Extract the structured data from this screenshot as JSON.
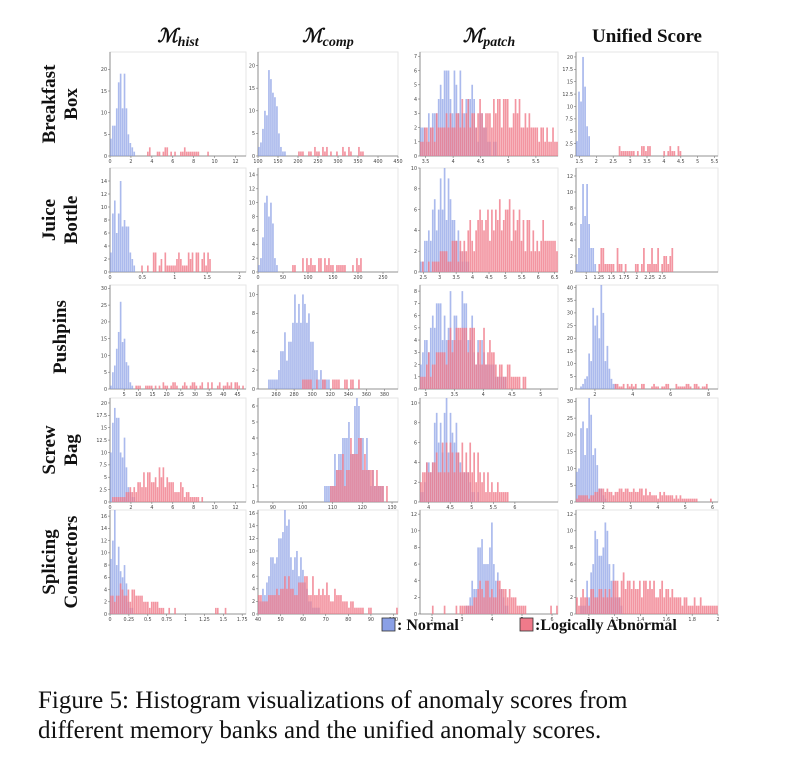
{
  "figure": {
    "columns": [
      {
        "symbol": "ℳ",
        "sub": "hist"
      },
      {
        "symbol": "ℳ",
        "sub": "comp"
      },
      {
        "symbol": "ℳ",
        "sub": "patch"
      },
      {
        "symbol": "",
        "sub": "",
        "label": "Unified Score"
      }
    ],
    "rows": [
      {
        "lines": [
          "Breakfast",
          "Box"
        ]
      },
      {
        "lines": [
          "Juice",
          "Bottle"
        ]
      },
      {
        "lines": [
          "Pushpins"
        ]
      },
      {
        "lines": [
          "Screw",
          "Bag"
        ]
      },
      {
        "lines": [
          "Splicing",
          "Connectors"
        ]
      }
    ],
    "legend": [
      {
        "label": ": Normal",
        "color": "#8aa0e6"
      },
      {
        "label": ":Logically Abnormal",
        "color": "#f07a8a"
      }
    ],
    "caption": {
      "line1": "Figure 5: Histogram visualizations of anomaly scores from",
      "line2": "different memory banks and the unified anomaly scores."
    }
  },
  "chart_data": {
    "type": "bar",
    "series_names": [
      "Normal",
      "Logically Abnormal"
    ],
    "colors": {
      "normal": "#8aa0e6",
      "abnormal": "#f07a8a"
    },
    "panels": [
      {
        "row": "Breakfast Box",
        "col": "M_hist",
        "xlim": [
          0,
          13
        ],
        "ylim": [
          0,
          24
        ],
        "xticks": [
          0,
          2,
          4,
          6,
          8,
          10,
          12
        ],
        "yticks": [
          0,
          5,
          10,
          15,
          20
        ],
        "normal": {
          "center": 1.0,
          "spread": 0.5,
          "peak": 23,
          "tail": 0
        },
        "abnormal": {
          "center": 6.5,
          "spread": 6,
          "peak": 2,
          "tail": 1,
          "uniform": true
        }
      },
      {
        "row": "Breakfast Box",
        "col": "M_comp",
        "xlim": [
          100,
          450
        ],
        "ylim": [
          0,
          23
        ],
        "xticks": [
          100,
          150,
          200,
          250,
          300,
          350,
          400,
          450
        ],
        "yticks": [
          0,
          5,
          10,
          15,
          20
        ],
        "normal": {
          "center": 130,
          "spread": 14,
          "peak": 22,
          "tail": 0
        },
        "abnormal": {
          "center": 280,
          "spread": 170,
          "peak": 2,
          "tail": 1,
          "uniform": true
        }
      },
      {
        "row": "Breakfast Box",
        "col": "M_patch",
        "xlim": [
          3.4,
          5.9
        ],
        "ylim": [
          0,
          7.3
        ],
        "xticks": [
          3.5,
          4.0,
          4.5,
          5.0,
          5.5
        ],
        "yticks": [
          0,
          1,
          2,
          3,
          4,
          5,
          6,
          7
        ],
        "normal": {
          "center": 4.0,
          "spread": 0.35,
          "peak": 7,
          "tail": 0
        },
        "abnormal": {
          "center": 4.6,
          "spread": 0.9,
          "peak": 4,
          "tail": 0
        }
      },
      {
        "row": "Breakfast Box",
        "col": "Unified",
        "xlim": [
          1.4,
          5.6
        ],
        "ylim": [
          0,
          21
        ],
        "xticks": [
          1.5,
          2.0,
          2.5,
          3.0,
          3.5,
          4.0,
          4.5,
          5.0,
          5.5
        ],
        "yticks": [
          0,
          2.5,
          5,
          7.5,
          10,
          12.5,
          15,
          17.5,
          20
        ],
        "normal": {
          "center": 1.6,
          "spread": 0.1,
          "peak": 20,
          "tail": 0
        },
        "abnormal": {
          "center": 3.5,
          "spread": 2,
          "peak": 2,
          "tail": 1,
          "uniform": true
        }
      },
      {
        "row": "Juice Bottle",
        "col": "M_hist",
        "xlim": [
          0,
          2.1
        ],
        "ylim": [
          0,
          16
        ],
        "xticks": [
          0,
          0.5,
          1.0,
          1.5,
          2.0
        ],
        "yticks": [
          0,
          2,
          4,
          6,
          8,
          10,
          12,
          14
        ],
        "normal": {
          "center": 0.15,
          "spread": 0.1,
          "peak": 15,
          "tail": 0
        },
        "abnormal": {
          "center": 1.0,
          "spread": 1.1,
          "peak": 3,
          "tail": 1,
          "uniform": true
        }
      },
      {
        "row": "Juice Bottle",
        "col": "M_comp",
        "xlim": [
          0,
          280
        ],
        "ylim": [
          0,
          15
        ],
        "xticks": [
          0,
          50,
          100,
          150,
          200,
          250
        ],
        "yticks": [
          0,
          2,
          4,
          6,
          8,
          10,
          12,
          14
        ],
        "normal": {
          "center": 20,
          "spread": 8,
          "peak": 14,
          "tail": 0
        },
        "abnormal": {
          "center": 140,
          "spread": 140,
          "peak": 2,
          "tail": 1,
          "uniform": true
        }
      },
      {
        "row": "Juice Bottle",
        "col": "M_patch",
        "xlim": [
          2.4,
          6.6
        ],
        "ylim": [
          0,
          10
        ],
        "xticks": [
          2.5,
          3.0,
          3.5,
          4.0,
          4.5,
          5.0,
          5.5,
          6.0,
          6.5
        ],
        "yticks": [
          0,
          2,
          4,
          6,
          8,
          10
        ],
        "normal": {
          "center": 3.1,
          "spread": 0.35,
          "peak": 9,
          "tail": 0
        },
        "abnormal": {
          "center": 5.0,
          "spread": 1.2,
          "peak": 6,
          "tail": 0
        }
      },
      {
        "row": "Juice Bottle",
        "col": "Unified",
        "xlim": [
          0.8,
          3.6
        ],
        "ylim": [
          0,
          13
        ],
        "xticks": [
          1.0,
          1.25,
          1.5,
          1.75,
          2.0,
          2.25,
          2.5
        ],
        "yticks": [
          0,
          2,
          4,
          6,
          8,
          10,
          12
        ],
        "normal": {
          "center": 1.0,
          "spread": 0.08,
          "peak": 12,
          "tail": 0
        },
        "abnormal": {
          "center": 2.0,
          "spread": 1.5,
          "peak": 3,
          "tail": 1,
          "uniform": true
        }
      },
      {
        "row": "Pushpins",
        "col": "M_hist",
        "xlim": [
          0,
          48
        ],
        "ylim": [
          0,
          31
        ],
        "xticks": [
          5,
          10,
          15,
          20,
          25,
          30,
          35,
          40,
          45
        ],
        "yticks": [
          0,
          5,
          10,
          15,
          20,
          25,
          30
        ],
        "normal": {
          "center": 4,
          "spread": 1.5,
          "peak": 29,
          "tail": 0
        },
        "abnormal": {
          "center": 28,
          "spread": 38,
          "peak": 2,
          "tail": 1,
          "uniform": true
        }
      },
      {
        "row": "Pushpins",
        "col": "M_comp",
        "xlim": [
          240,
          395
        ],
        "ylim": [
          0,
          11
        ],
        "xticks": [
          260,
          280,
          300,
          320,
          340,
          360,
          380
        ],
        "yticks": [
          0,
          2,
          4,
          6,
          8,
          10
        ],
        "normal": {
          "center": 285,
          "spread": 14,
          "peak": 10,
          "tail": 0
        },
        "abnormal": {
          "center": 320,
          "spread": 70,
          "peak": 2,
          "tail": 1,
          "uniform": true
        }
      },
      {
        "row": "Pushpins",
        "col": "M_patch",
        "xlim": [
          2.9,
          5.3
        ],
        "ylim": [
          0,
          8.5
        ],
        "xticks": [
          3.0,
          3.5,
          4.0,
          4.5,
          5.0
        ],
        "yticks": [
          0,
          1,
          2,
          3,
          4,
          5,
          6,
          7,
          8
        ],
        "normal": {
          "center": 3.5,
          "spread": 0.4,
          "peak": 8,
          "tail": 0
        },
        "abnormal": {
          "center": 3.7,
          "spread": 0.5,
          "peak": 5,
          "tail": 0
        }
      },
      {
        "row": "Pushpins",
        "col": "Unified",
        "xlim": [
          1,
          8.5
        ],
        "ylim": [
          0,
          41
        ],
        "xticks": [
          2,
          4,
          6,
          8
        ],
        "yticks": [
          0,
          5,
          10,
          15,
          20,
          25,
          30,
          35,
          40
        ],
        "normal": {
          "center": 2.2,
          "spread": 0.35,
          "peak": 40,
          "tail": 0
        },
        "abnormal": {
          "center": 5.5,
          "spread": 5,
          "peak": 2,
          "tail": 1,
          "uniform": true
        }
      },
      {
        "row": "Screw Bag",
        "col": "M_hist",
        "xlim": [
          0,
          13
        ],
        "ylim": [
          0,
          21
        ],
        "xticks": [
          0,
          2,
          4,
          6,
          8,
          10,
          12
        ],
        "yticks": [
          0,
          2.5,
          5,
          7.5,
          10,
          12.5,
          15,
          17.5,
          20
        ],
        "normal": {
          "center": 0.8,
          "spread": 0.6,
          "peak": 20,
          "tail": 0
        },
        "abnormal": {
          "center": 4.5,
          "spread": 2.0,
          "peak": 6,
          "tail": 0
        }
      },
      {
        "row": "Screw Bag",
        "col": "M_comp",
        "xlim": [
          85,
          132
        ],
        "ylim": [
          0,
          6.5
        ],
        "xticks": [
          90,
          100,
          110,
          120,
          130
        ],
        "yticks": [
          0,
          1,
          2,
          3,
          4,
          5,
          6
        ],
        "normal": {
          "center": 117,
          "spread": 4.5,
          "peak": 6,
          "tail": 0
        },
        "abnormal": {
          "center": 118,
          "spread": 5,
          "peak": 4,
          "tail": 0
        }
      },
      {
        "row": "Screw Bag",
        "col": "M_patch",
        "xlim": [
          3.8,
          7.0
        ],
        "ylim": [
          0,
          10.5
        ],
        "xticks": [
          4.0,
          4.5,
          5.0,
          5.5,
          6.0
        ],
        "yticks": [
          0,
          2,
          4,
          6,
          8,
          10
        ],
        "normal": {
          "center": 4.4,
          "spread": 0.3,
          "peak": 10,
          "tail": 0
        },
        "abnormal": {
          "center": 4.6,
          "spread": 0.6,
          "peak": 6,
          "tail": 0
        }
      },
      {
        "row": "Screw Bag",
        "col": "Unified",
        "xlim": [
          1,
          6.2
        ],
        "ylim": [
          0,
          31
        ],
        "xticks": [
          2,
          3,
          4,
          5,
          6
        ],
        "yticks": [
          0,
          5,
          10,
          15,
          20,
          25,
          30
        ],
        "normal": {
          "center": 1.4,
          "spread": 0.25,
          "peak": 30,
          "tail": 0
        },
        "abnormal": {
          "center": 2.8,
          "spread": 1.5,
          "peak": 4,
          "tail": 0
        }
      },
      {
        "row": "Splicing Connectors",
        "col": "M_hist",
        "xlim": [
          0,
          1.8
        ],
        "ylim": [
          0,
          17
        ],
        "xticks": [
          0,
          0.25,
          0.5,
          0.75,
          1.0,
          1.25,
          1.5,
          1.75
        ],
        "yticks": [
          0,
          2,
          4,
          6,
          8,
          10,
          12,
          14,
          16
        ],
        "normal": {
          "center": 0.1,
          "spread": 0.08,
          "peak": 16,
          "tail": 0
        },
        "abnormal": {
          "center": 0.2,
          "spread": 0.3,
          "peak": 4,
          "tail": 1
        }
      },
      {
        "row": "Splicing Connectors",
        "col": "M_comp",
        "xlim": [
          40,
          102
        ],
        "ylim": [
          0,
          16.5
        ],
        "xticks": [
          40,
          50,
          60,
          70,
          80,
          90,
          100
        ],
        "yticks": [
          0,
          2,
          4,
          6,
          8,
          10,
          12,
          14,
          16
        ],
        "normal": {
          "center": 52,
          "spread": 6,
          "peak": 15,
          "tail": 0
        },
        "abnormal": {
          "center": 60,
          "spread": 14,
          "peak": 6,
          "tail": 1
        }
      },
      {
        "row": "Splicing Connectors",
        "col": "M_patch",
        "xlim": [
          1.6,
          6.2
        ],
        "ylim": [
          0,
          12.5
        ],
        "xticks": [
          2,
          3,
          4,
          5,
          6
        ],
        "yticks": [
          0,
          2,
          4,
          6,
          8,
          10,
          12
        ],
        "normal": {
          "center": 3.8,
          "spread": 0.3,
          "peak": 12,
          "tail": 0
        },
        "abnormal": {
          "center": 4.0,
          "spread": 0.6,
          "peak": 4,
          "tail": 1
        }
      },
      {
        "row": "Splicing Connectors",
        "col": "Unified",
        "xlim": [
          0.9,
          2.0
        ],
        "ylim": [
          0,
          12.5
        ],
        "xticks": [
          1.0,
          1.2,
          1.4,
          1.6,
          1.8,
          2.0
        ],
        "yticks": [
          0,
          2,
          4,
          6,
          8,
          10,
          12
        ],
        "normal": {
          "center": 1.1,
          "spread": 0.07,
          "peak": 12,
          "tail": 0
        },
        "abnormal": {
          "center": 1.3,
          "spread": 0.4,
          "peak": 4,
          "tail": 1
        }
      }
    ]
  }
}
